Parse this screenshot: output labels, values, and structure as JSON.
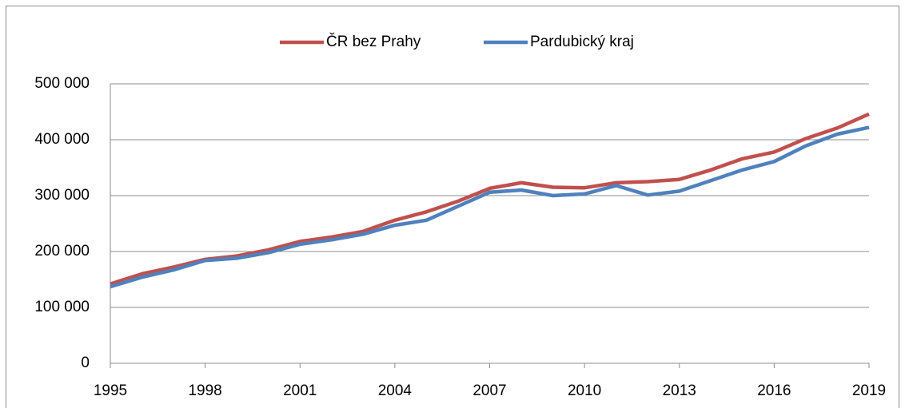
{
  "chart_data": {
    "type": "line",
    "x": [
      1995,
      1996,
      1997,
      1998,
      1999,
      2000,
      2001,
      2002,
      2003,
      2004,
      2005,
      2006,
      2007,
      2008,
      2009,
      2010,
      2011,
      2012,
      2013,
      2014,
      2015,
      2016,
      2017,
      2018,
      2019
    ],
    "series": [
      {
        "name": "ČR bez Prahy",
        "color": "#c0504d",
        "values": [
          142000,
          160000,
          172000,
          186000,
          192000,
          203000,
          218000,
          226000,
          236000,
          256000,
          271000,
          290000,
          313000,
          323000,
          315000,
          314000,
          323000,
          325000,
          329000,
          346000,
          366000,
          378000,
          402000,
          421000,
          446000
        ]
      },
      {
        "name": "Pardubický kraj",
        "color": "#4f81bd",
        "values": [
          137000,
          154000,
          167000,
          184000,
          188000,
          198000,
          213000,
          221000,
          231000,
          247000,
          256000,
          281000,
          306000,
          310000,
          300000,
          303000,
          318000,
          301000,
          308000,
          327000,
          346000,
          361000,
          389000,
          410000,
          422000
        ]
      }
    ],
    "xlim": [
      1995,
      2019
    ],
    "xticks": [
      1995,
      1998,
      2001,
      2004,
      2007,
      2010,
      2013,
      2016,
      2019
    ],
    "ylim": [
      0,
      500000
    ],
    "yticks": [
      0,
      {
        "value": 100000,
        "label": "100 000"
      },
      {
        "value": 200000,
        "label": "200 000"
      },
      {
        "value": 300000,
        "label": "300 000"
      },
      {
        "value": 400000,
        "label": "400 000"
      },
      {
        "value": 500000,
        "label": "500 000"
      }
    ],
    "grid": true,
    "legend": "top"
  }
}
